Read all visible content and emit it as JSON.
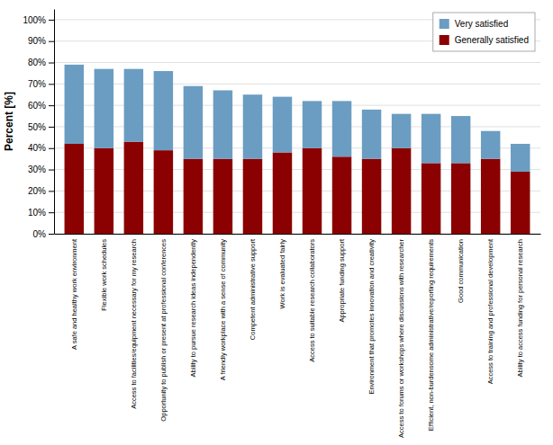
{
  "chart_data": {
    "type": "bar",
    "ylabel": "Percent [%]",
    "categories": [
      "A safe and healthy work environment",
      "Flexible work schedules",
      "Access to facilities/equipment necessary for my research",
      "Opportunity to publish or present at professional conferences",
      "Ability to pursue research ideas independently",
      "A friendly workplace with a sense of community",
      "Competent administrative support",
      "Work is evaluated fairly",
      "Access to suitable research collaborators",
      "Appropriate funding support",
      "Environment that promotes innovation and creativity",
      "Access to forums or workshops where discussions with researcher",
      "Efficient, non-burdensome administrative/reporting requirements",
      "Good communication",
      "Access to training and professional development",
      "Ability to access funding for personal research"
    ],
    "series": [
      {
        "name": "Generally satisfied",
        "color": "#8b0000",
        "values": [
          42,
          40,
          43,
          39,
          35,
          35,
          35,
          38,
          40,
          36,
          35,
          40,
          33,
          33,
          35,
          29
        ]
      },
      {
        "name": "Very satisfied",
        "color": "#6b9dc2",
        "values": [
          37,
          37,
          34,
          37,
          34,
          32,
          30,
          26,
          22,
          26,
          23,
          16,
          23,
          22,
          13,
          13
        ]
      }
    ],
    "stacked": true,
    "ylim": [
      0,
      105
    ],
    "yticks": [
      {
        "value": 0,
        "label": "0%"
      },
      {
        "value": 10,
        "label": "10%"
      },
      {
        "value": 20,
        "label": "20%"
      },
      {
        "value": 30,
        "label": "30%"
      },
      {
        "value": 40,
        "label": "40%"
      },
      {
        "value": 50,
        "label": "50%"
      },
      {
        "value": 60,
        "label": "60%"
      },
      {
        "value": 70,
        "label": "70%"
      },
      {
        "value": 80,
        "label": "80%"
      },
      {
        "value": 90,
        "label": "90%"
      },
      {
        "value": 100,
        "label": "100%"
      }
    ],
    "grid": true,
    "legend": "upper right"
  }
}
